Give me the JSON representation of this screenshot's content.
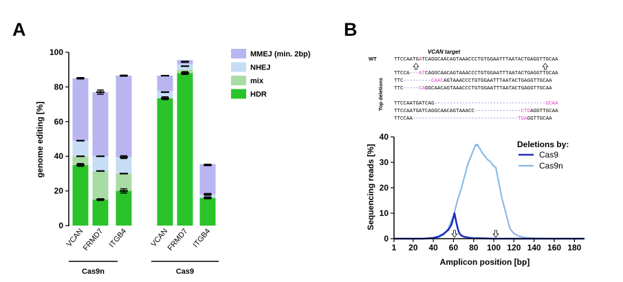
{
  "figure": {
    "panel_a_label": "A",
    "panel_b_label": "B"
  },
  "colors": {
    "mmej": "#b8b5f0",
    "nhej": "#c6ddf5",
    "mix": "#a9dba5",
    "hdr": "#2ac42a",
    "cas9": "#1f2fbf",
    "cas9n": "#8bbbe6",
    "mutation": "#e040c8",
    "wt_mutation": "#e03030"
  },
  "chart_data": [
    {
      "type": "bar",
      "stacked": true,
      "title": "",
      "ylabel": "genome editing [%]",
      "xlabel": "",
      "ylim": [
        0,
        100
      ],
      "yticks": [
        0,
        20,
        40,
        60,
        80,
        100
      ],
      "categories": [
        "VCAN",
        "FRMD7",
        "ITGB4",
        "VCAN",
        "FRMD7",
        "ITGB4"
      ],
      "groups": [
        {
          "label": "Cas9n",
          "indices": [
            0,
            1,
            2
          ]
        },
        {
          "label": "Cas9",
          "indices": [
            3,
            4,
            5
          ]
        }
      ],
      "legend": [
        "MMEJ (min. 2bp)",
        "NHEJ",
        "mix",
        "HDR"
      ],
      "series": [
        {
          "name": "HDR",
          "key": "hdr",
          "values": [
            35,
            15,
            20,
            73.5,
            88,
            16
          ]
        },
        {
          "name": "mix",
          "key": "mix",
          "values": [
            5,
            16.5,
            10,
            0,
            2,
            0
          ]
        },
        {
          "name": "NHEJ",
          "key": "nhej",
          "values": [
            9,
            8.5,
            9.5,
            4,
            3,
            2
          ]
        },
        {
          "name": "MMEJ (min. 2bp)",
          "key": "mmej",
          "values": [
            36,
            37,
            47,
            9,
            2.5,
            17.5
          ]
        }
      ],
      "errors": [
        [
          {
            "y": 35,
            "e": 0.8
          },
          {
            "y": 40,
            "e": 0
          },
          {
            "y": 49,
            "e": 0
          },
          {
            "y": 85,
            "e": 0.4
          }
        ],
        [
          {
            "y": 15,
            "e": 0.5
          },
          {
            "y": 31.5,
            "e": 0
          },
          {
            "y": 40,
            "e": 0
          },
          {
            "y": 77,
            "e": 1.2
          }
        ],
        [
          {
            "y": 20,
            "e": 1.2
          },
          {
            "y": 30,
            "e": 0
          },
          {
            "y": 39.5,
            "e": 0.8
          },
          {
            "y": 86.5,
            "e": 0.3
          }
        ],
        [
          {
            "y": 73.5,
            "e": 0.8
          },
          {
            "y": 77,
            "e": 0
          },
          {
            "y": 86.5,
            "e": 0
          }
        ],
        [
          {
            "y": 88,
            "e": 0.8
          },
          {
            "y": 92,
            "e": 0
          },
          {
            "y": 94.5,
            "e": 0.3
          }
        ],
        [
          {
            "y": 16,
            "e": 0.5
          },
          {
            "y": 18,
            "e": 0.5
          },
          {
            "y": 35,
            "e": 0.4
          }
        ]
      ]
    },
    {
      "type": "line",
      "title": "",
      "xlabel": "Amplicon position [bp]",
      "ylabel": "Sequencing reads [%]",
      "xlim": [
        1,
        190
      ],
      "ylim": [
        0,
        40
      ],
      "xticks": [
        1,
        20,
        40,
        60,
        80,
        100,
        120,
        140,
        160,
        180
      ],
      "yticks": [
        0,
        10,
        20,
        30,
        40
      ],
      "legend_title": "Deletions by:",
      "legend_position": "top-right",
      "arrows_at": [
        61,
        102
      ],
      "series": [
        {
          "name": "Cas9",
          "key": "cas9",
          "x": [
            1,
            30,
            40,
            45,
            50,
            55,
            58,
            60,
            61,
            62,
            63,
            64,
            65,
            66,
            68,
            70,
            75,
            80,
            90,
            100,
            110,
            120,
            140,
            160,
            190
          ],
          "y": [
            0,
            0,
            0.3,
            0.8,
            1.8,
            3.5,
            5.5,
            8.5,
            10,
            8,
            6,
            4.5,
            3,
            2,
            1.2,
            0.8,
            0.4,
            0.2,
            0.1,
            0,
            0,
            0,
            0,
            0,
            0
          ]
        },
        {
          "name": "Cas9n",
          "key": "cas9n",
          "x": [
            1,
            30,
            40,
            45,
            50,
            55,
            58,
            60,
            62,
            64,
            66,
            68,
            70,
            72,
            74,
            76,
            78,
            80,
            82,
            83,
            84,
            85,
            86,
            88,
            90,
            92,
            94,
            96,
            98,
            100,
            102,
            104,
            106,
            108,
            110,
            112,
            114,
            116,
            120,
            125,
            130,
            140,
            150,
            190
          ],
          "y": [
            0,
            0,
            0.2,
            0.5,
            1.5,
            4,
            7,
            9,
            12,
            15,
            17.5,
            20,
            23,
            26,
            29,
            31,
            33,
            35,
            37,
            36.5,
            37,
            36,
            35.5,
            34,
            33,
            32,
            31,
            30.5,
            29.5,
            28.5,
            28,
            24,
            20,
            16,
            13,
            10,
            7,
            4,
            2,
            1,
            0.5,
            0.2,
            0,
            0
          ]
        }
      ]
    }
  ],
  "sequence": {
    "title": "VCAN target",
    "wt_label": "WT",
    "wt": {
      "pre": "TTCCAATG",
      "mut": "A",
      "post": "TCAGGCAACAGTAAACCCTGTGGAATTTAATACTGAGGTTGCAA"
    },
    "deletions_label": "Top deletions",
    "deletions": [
      {
        "pre": "TTCCA",
        "dash": "---",
        "mut": "AT",
        "post": "CAGGCAACAGTAAACCCTGTGGAATTTAATACTGAGGTTGCAA"
      },
      {
        "pre": "TTC",
        "dash": "---------",
        "mut": "CAAC",
        "post": "AGTAAACCCTGTGGAATTTAATACTGAGGTTGCAA"
      },
      {
        "pre": "TTC",
        "dash": "-----",
        "mut": "CA",
        "post": "GGCAACAGTAAACCCTGTGGAATTTAATACTGAGGTTGCAA"
      },
      {
        "pre": "TTCCAATGATCAG",
        "dash": "------------------------------------",
        "mut": "GCAA",
        "post": ""
      },
      {
        "pre": "TTCCAATGATCAGGCAACAGTAAACC",
        "dash": "---------------",
        "mut": "CTG",
        "post": "AGGTTGCAA"
      },
      {
        "pre": "TTCCAA",
        "dash": "----------------------------------",
        "mut": "TGA",
        "post": "GGTTGCAA"
      }
    ]
  }
}
